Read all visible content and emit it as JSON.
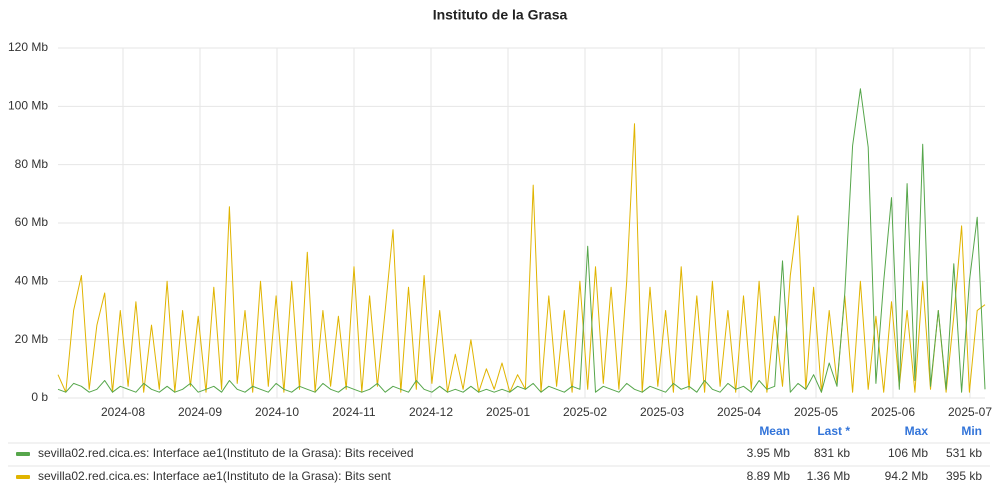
{
  "chart_data": {
    "type": "line",
    "title": "Instituto de la Grasa",
    "ylim": [
      0,
      120
    ],
    "yticks": [
      {
        "value": 0,
        "label": "0 b"
      },
      {
        "value": 20,
        "label": "20 Mb"
      },
      {
        "value": 40,
        "label": "40 Mb"
      },
      {
        "value": 60,
        "label": "60 Mb"
      },
      {
        "value": 80,
        "label": "80 Mb"
      },
      {
        "value": 100,
        "label": "100 Mb"
      },
      {
        "value": 120,
        "label": "120 Mb"
      }
    ],
    "xticks": [
      "2024-08",
      "2024-09",
      "2024-10",
      "2024-11",
      "2024-12",
      "2025-01",
      "2025-02",
      "2025-03",
      "2025-04",
      "2025-05",
      "2025-06",
      "2025-07"
    ],
    "grid": true,
    "legend_columns": [
      "Mean",
      "Last *",
      "Max",
      "Min"
    ],
    "series": [
      {
        "name": "sevilla02.red.cica.es: Interface ae1(Instituto de la Grasa): Bits received",
        "color": "#56a64b",
        "stats": [
          "3.95 Mb",
          "831 kb",
          "106 Mb",
          "531 kb"
        ],
        "values": [
          3,
          2,
          5,
          4,
          2,
          3,
          6,
          2,
          4,
          3,
          2,
          5,
          3,
          2,
          4,
          2,
          3,
          5,
          2,
          3,
          4,
          2,
          6,
          3,
          2,
          4,
          3,
          2,
          5,
          3,
          2,
          4,
          3,
          2,
          5,
          3,
          2,
          4,
          3,
          2,
          3,
          5,
          2,
          4,
          3,
          2,
          6,
          3,
          2,
          4,
          2,
          3,
          2,
          4,
          2,
          3,
          2,
          3,
          2,
          4,
          3,
          5,
          2,
          4,
          3,
          2,
          4,
          3,
          52,
          2,
          4,
          3,
          2,
          5,
          3,
          2,
          4,
          3,
          2,
          5,
          3,
          4,
          2,
          6,
          3,
          2,
          5,
          3,
          4,
          2,
          6,
          3,
          4,
          47,
          2,
          5,
          3,
          8,
          2,
          12,
          4,
          36,
          86.5,
          106,
          86,
          5,
          40,
          68.7,
          3,
          73.5,
          6,
          87,
          4,
          30,
          3,
          46,
          2,
          40,
          62,
          3
        ]
      },
      {
        "name": "sevilla02.red.cica.es: Interface ae1(Instituto de la Grasa): Bits sent",
        "color": "#e0b400",
        "stats": [
          "8.89 Mb",
          "1.36 Mb",
          "94.2 Mb",
          "395 kb"
        ],
        "values": [
          8,
          2,
          30,
          42,
          3,
          25,
          36,
          2,
          30,
          4,
          33,
          2,
          25,
          3,
          40,
          2,
          30,
          4,
          28,
          2,
          38,
          3,
          65.6,
          5,
          30,
          2,
          40,
          4,
          35,
          2,
          40,
          3,
          50,
          2,
          30,
          4,
          28,
          3,
          45,
          2,
          35,
          4,
          30,
          57.7,
          2,
          38,
          3,
          42,
          5,
          30,
          2,
          15,
          3,
          20,
          2,
          10,
          3,
          12,
          2,
          8,
          3,
          73,
          2,
          35,
          4,
          30,
          2,
          40,
          3,
          45,
          5,
          38,
          3,
          40,
          94,
          2,
          38,
          4,
          30,
          2,
          45,
          3,
          35,
          2,
          40,
          4,
          30,
          2,
          35,
          3,
          40,
          2,
          28,
          4,
          42,
          62.5,
          3,
          38,
          2,
          30,
          5,
          35,
          2,
          40,
          3,
          28,
          2,
          33,
          4,
          30,
          2,
          40,
          3,
          30,
          2,
          28,
          59,
          2,
          30,
          32
        ]
      }
    ]
  }
}
